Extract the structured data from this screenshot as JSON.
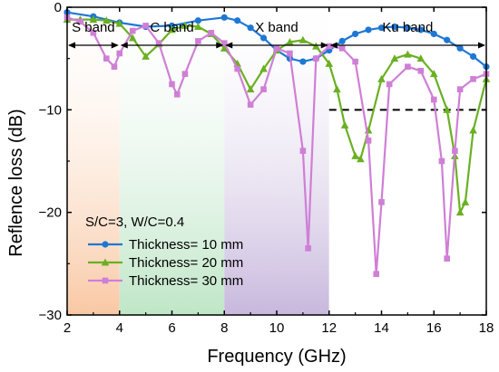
{
  "chart_data": {
    "type": "line",
    "title": "",
    "xlabel": "Frequency (GHz)",
    "ylabel": "Reflence loss (dB)",
    "xlim": [
      2,
      18
    ],
    "ylim": [
      -30,
      0
    ],
    "x_ticks": [
      2,
      4,
      6,
      8,
      10,
      12,
      14,
      16,
      18
    ],
    "y_ticks": [
      0,
      -10,
      -20,
      -30
    ],
    "bands": [
      {
        "label": "S band",
        "from": 2,
        "to": 4,
        "color": "#f9c8a4"
      },
      {
        "label": "C band",
        "from": 4,
        "to": 8,
        "color": "#bfe6c7"
      },
      {
        "label": "X band",
        "from": 8,
        "to": 12,
        "color": "#c8b8dd"
      },
      {
        "label": "Ku band",
        "from": 12,
        "to": 18,
        "color": "#ffffff"
      }
    ],
    "reference_line": {
      "y": -10,
      "from": 12,
      "to": 18,
      "style": "dashed"
    },
    "legend_note": "S/C=3, W/C=0.4",
    "legend_position": "lower-left",
    "series": [
      {
        "name": "Thickness= 10 mm",
        "color": "#1f77d4",
        "marker": "circle",
        "x": [
          2,
          3,
          4,
          5,
          6,
          7,
          8,
          8.5,
          9,
          9.5,
          10,
          10.5,
          11,
          11.5,
          12,
          12.5,
          13,
          13.5,
          14,
          14.5,
          15,
          15.5,
          16,
          16.5,
          17,
          17.5,
          18
        ],
        "y": [
          -0.5,
          -0.9,
          -1.5,
          -1.9,
          -1.8,
          -1.3,
          -1.0,
          -1.3,
          -2.0,
          -3.0,
          -4.2,
          -5.0,
          -5.3,
          -5.0,
          -4.2,
          -3.3,
          -2.6,
          -2.2,
          -2.0,
          -1.9,
          -2.0,
          -2.2,
          -2.6,
          -3.2,
          -4.0,
          -4.8,
          -5.8
        ]
      },
      {
        "name": "Thickness= 20 mm",
        "color": "#6ab023",
        "marker": "triangle",
        "x": [
          2,
          2.5,
          3,
          3.5,
          4,
          4.5,
          5,
          5.5,
          6,
          6.5,
          7,
          7.5,
          8,
          8.5,
          9,
          9.5,
          10,
          10.5,
          11,
          11.5,
          12,
          12.3,
          12.6,
          13,
          13.2,
          13.5,
          14,
          14.5,
          15,
          15.5,
          16,
          16.5,
          16.8,
          17,
          17.2,
          17.5,
          18
        ],
        "y": [
          -1.2,
          -1.2,
          -1.2,
          -1.3,
          -1.6,
          -3.0,
          -4.8,
          -3.6,
          -2.2,
          -1.8,
          -1.9,
          -2.6,
          -4.0,
          -5.5,
          -8.0,
          -6.0,
          -4.2,
          -3.4,
          -3.2,
          -3.8,
          -5.5,
          -8.0,
          -11.5,
          -14.5,
          -14.8,
          -12.0,
          -7.0,
          -5.0,
          -4.6,
          -5.0,
          -6.5,
          -10.0,
          -14.5,
          -20.0,
          -19.0,
          -12.0,
          -7.0
        ]
      },
      {
        "name": "Thickness= 30 mm",
        "color": "#cf7fd6",
        "marker": "square",
        "x": [
          2,
          2.5,
          3,
          3.5,
          3.8,
          4,
          4.5,
          5,
          5.5,
          6,
          6.2,
          6.5,
          7,
          7.5,
          8,
          8.5,
          9,
          9.5,
          10,
          10.5,
          11,
          11.2,
          11.5,
          12,
          12.5,
          13,
          13.5,
          13.8,
          14,
          14.3,
          15,
          15.5,
          16,
          16.3,
          16.5,
          16.8,
          17,
          17.5,
          18
        ],
        "y": [
          -1.0,
          -1.4,
          -2.5,
          -5.0,
          -5.8,
          -4.5,
          -2.3,
          -1.8,
          -3.5,
          -7.5,
          -8.5,
          -6.5,
          -3.3,
          -2.5,
          -3.5,
          -6.0,
          -9.5,
          -8.0,
          -4.0,
          -4.5,
          -14.0,
          -23.5,
          -5.0,
          -3.8,
          -4.0,
          -5.3,
          -13.0,
          -26.0,
          -19.0,
          -7.5,
          -5.8,
          -6.2,
          -9.0,
          -15.0,
          -24.5,
          -14.0,
          -8.0,
          -7.0,
          -6.5
        ]
      }
    ]
  }
}
